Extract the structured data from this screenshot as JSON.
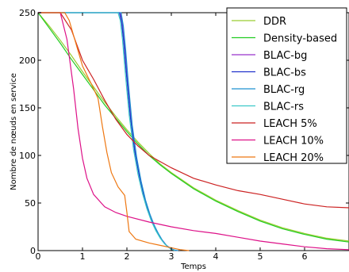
{
  "chart_data": {
    "type": "line",
    "xlabel": "Temps",
    "ylabel": "Nombre de nœuds en service",
    "xlim": [
      0,
      7
    ],
    "ylim": [
      0,
      250
    ],
    "x_ticks": [
      0,
      1,
      2,
      3,
      4,
      5,
      6
    ],
    "y_ticks": [
      0,
      50,
      100,
      150,
      200,
      250
    ],
    "grid": false,
    "legend_position": "top-right",
    "series": [
      {
        "name": "DDR",
        "color": "#9acd32",
        "points": [
          [
            0,
            250
          ],
          [
            0.25,
            236
          ],
          [
            0.5,
            221
          ],
          [
            0.75,
            205
          ],
          [
            1.0,
            188
          ],
          [
            1.25,
            172
          ],
          [
            1.5,
            156
          ],
          [
            1.75,
            141
          ],
          [
            2.0,
            127
          ],
          [
            2.25,
            114
          ],
          [
            2.5,
            102
          ],
          [
            2.75,
            91
          ],
          [
            3.0,
            82
          ],
          [
            3.5,
            66
          ],
          [
            4.0,
            53
          ],
          [
            4.5,
            42
          ],
          [
            5.0,
            32
          ],
          [
            5.5,
            24
          ],
          [
            6.0,
            18
          ],
          [
            6.5,
            13
          ],
          [
            7.0,
            10
          ]
        ]
      },
      {
        "name": "Density-based",
        "color": "#22cc22",
        "points": [
          [
            0,
            250
          ],
          [
            0.25,
            234
          ],
          [
            0.5,
            218
          ],
          [
            0.75,
            201
          ],
          [
            1.0,
            185
          ],
          [
            1.25,
            169
          ],
          [
            1.5,
            153
          ],
          [
            1.75,
            139
          ],
          [
            2.0,
            125
          ],
          [
            2.25,
            112
          ],
          [
            2.5,
            100
          ],
          [
            2.75,
            90
          ],
          [
            3.0,
            81
          ],
          [
            3.5,
            65
          ],
          [
            4.0,
            52
          ],
          [
            4.5,
            41
          ],
          [
            5.0,
            31
          ],
          [
            5.5,
            23
          ],
          [
            6.0,
            17
          ],
          [
            6.5,
            12
          ],
          [
            7.0,
            9
          ]
        ]
      },
      {
        "name": "BLAC-bg",
        "color": "#9933cc",
        "points": [
          [
            0,
            250
          ],
          [
            1.85,
            250
          ],
          [
            1.9,
            238
          ],
          [
            1.95,
            215
          ],
          [
            2.0,
            185
          ],
          [
            2.05,
            160
          ],
          [
            2.1,
            135
          ],
          [
            2.2,
            100
          ],
          [
            2.3,
            75
          ],
          [
            2.4,
            55
          ],
          [
            2.5,
            40
          ],
          [
            2.6,
            28
          ],
          [
            2.7,
            18
          ],
          [
            2.8,
            10
          ],
          [
            2.9,
            5
          ],
          [
            3.0,
            2
          ],
          [
            3.1,
            0
          ]
        ]
      },
      {
        "name": "BLAC-bs",
        "color": "#2233cc",
        "points": [
          [
            0,
            250
          ],
          [
            1.83,
            250
          ],
          [
            1.88,
            240
          ],
          [
            1.93,
            218
          ],
          [
            1.98,
            190
          ],
          [
            2.03,
            164
          ],
          [
            2.08,
            139
          ],
          [
            2.18,
            103
          ],
          [
            2.28,
            78
          ],
          [
            2.38,
            58
          ],
          [
            2.48,
            42
          ],
          [
            2.58,
            30
          ],
          [
            2.68,
            20
          ],
          [
            2.78,
            12
          ],
          [
            2.88,
            6
          ],
          [
            2.98,
            2
          ],
          [
            3.1,
            0
          ]
        ]
      },
      {
        "name": "BLAC-rg",
        "color": "#1e90d0",
        "points": [
          [
            0,
            250
          ],
          [
            1.87,
            250
          ],
          [
            1.92,
            236
          ],
          [
            1.97,
            212
          ],
          [
            2.02,
            183
          ],
          [
            2.07,
            157
          ],
          [
            2.12,
            132
          ],
          [
            2.22,
            98
          ],
          [
            2.32,
            73
          ],
          [
            2.42,
            53
          ],
          [
            2.52,
            38
          ],
          [
            2.62,
            26
          ],
          [
            2.72,
            17
          ],
          [
            2.82,
            9
          ],
          [
            2.92,
            4
          ],
          [
            3.02,
            1
          ],
          [
            3.15,
            0
          ]
        ]
      },
      {
        "name": "BLAC-rs",
        "color": "#3cc8c8",
        "points": [
          [
            0,
            250
          ],
          [
            1.8,
            250
          ],
          [
            1.85,
            242
          ],
          [
            1.9,
            222
          ],
          [
            1.95,
            194
          ],
          [
            2.0,
            168
          ],
          [
            2.05,
            143
          ],
          [
            2.15,
            106
          ],
          [
            2.25,
            80
          ],
          [
            2.35,
            60
          ],
          [
            2.45,
            44
          ],
          [
            2.55,
            31
          ],
          [
            2.65,
            21
          ],
          [
            2.75,
            13
          ],
          [
            2.85,
            7
          ],
          [
            2.95,
            3
          ],
          [
            3.08,
            0
          ]
        ]
      },
      {
        "name": "LEACH 5%",
        "color": "#cc2222",
        "points": [
          [
            0,
            250
          ],
          [
            0.5,
            250
          ],
          [
            0.75,
            232
          ],
          [
            1.0,
            200
          ],
          [
            1.25,
            180
          ],
          [
            1.5,
            158
          ],
          [
            1.75,
            138
          ],
          [
            2.0,
            122
          ],
          [
            2.25,
            110
          ],
          [
            2.5,
            100
          ],
          [
            3.0,
            87
          ],
          [
            3.5,
            76
          ],
          [
            4.0,
            69
          ],
          [
            4.5,
            63
          ],
          [
            5.0,
            59
          ],
          [
            5.5,
            54
          ],
          [
            6.0,
            49
          ],
          [
            6.5,
            46
          ],
          [
            7.0,
            45
          ]
        ]
      },
      {
        "name": "LEACH 10%",
        "color": "#dd1188",
        "points": [
          [
            0,
            250
          ],
          [
            0.5,
            250
          ],
          [
            0.65,
            222
          ],
          [
            0.8,
            170
          ],
          [
            0.9,
            128
          ],
          [
            1.0,
            97
          ],
          [
            1.1,
            76
          ],
          [
            1.25,
            59
          ],
          [
            1.5,
            46
          ],
          [
            1.75,
            40
          ],
          [
            2.0,
            36
          ],
          [
            2.5,
            30
          ],
          [
            3.0,
            25
          ],
          [
            3.5,
            21
          ],
          [
            4.0,
            18
          ],
          [
            4.5,
            14
          ],
          [
            5.0,
            10
          ],
          [
            5.5,
            7
          ],
          [
            6.0,
            4
          ],
          [
            6.5,
            2
          ],
          [
            7.0,
            1
          ]
        ]
      },
      {
        "name": "LEACH 20%",
        "color": "#ee7711",
        "points": [
          [
            0,
            250
          ],
          [
            0.6,
            250
          ],
          [
            0.7,
            242
          ],
          [
            0.85,
            218
          ],
          [
            1.0,
            194
          ],
          [
            1.2,
            175
          ],
          [
            1.35,
            160
          ],
          [
            1.45,
            130
          ],
          [
            1.55,
            103
          ],
          [
            1.65,
            82
          ],
          [
            1.8,
            67
          ],
          [
            1.95,
            58
          ],
          [
            2.0,
            40
          ],
          [
            2.05,
            20
          ],
          [
            2.2,
            12
          ],
          [
            2.5,
            8
          ],
          [
            2.8,
            5
          ],
          [
            3.0,
            3
          ],
          [
            3.2,
            1
          ],
          [
            3.4,
            0
          ]
        ]
      }
    ]
  }
}
